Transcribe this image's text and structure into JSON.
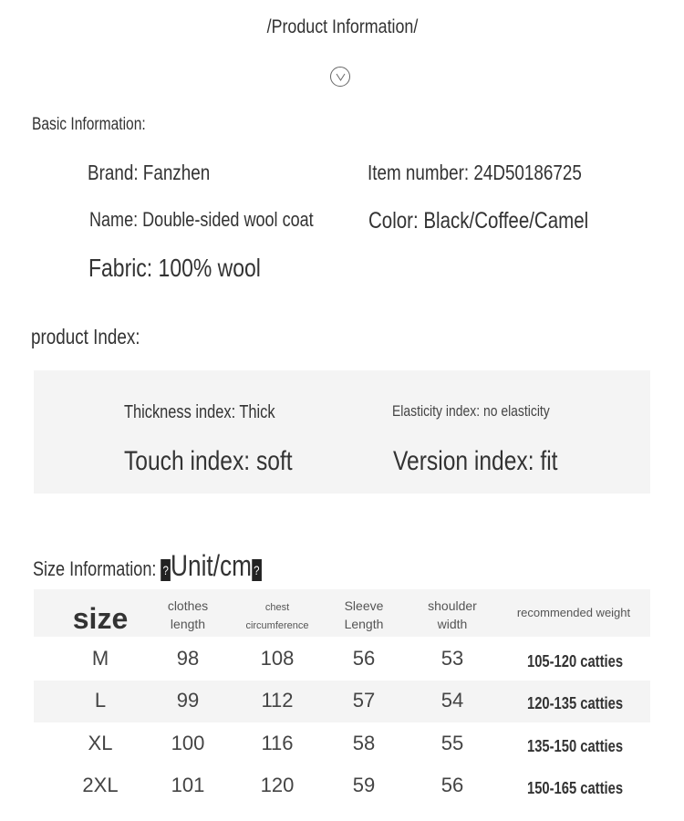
{
  "header": {
    "title": "/Product Information/",
    "icon": "chevron-down-circle-icon"
  },
  "basic": {
    "heading": "Basic Information:",
    "brand": "Brand: Fanzhen",
    "item_number": "Item number: 24D50186725",
    "name": "Name: Double-sided wool coat",
    "color": "Color: Black/Coffee/Camel",
    "fabric": "Fabric: 100% wool"
  },
  "index": {
    "heading": "product Index:",
    "thickness": "Thickness index: Thick",
    "elasticity": "Elasticity index: no elasticity",
    "touch": "Touch index: soft",
    "version": "Version index: fit"
  },
  "size": {
    "heading": "Size Information:",
    "unit": "Unit/cm",
    "unit_bracket": "?",
    "columns": [
      {
        "l1": "size",
        "l2": ""
      },
      {
        "l1": "clothes",
        "l2": "length"
      },
      {
        "l1": "chest",
        "l2": "circumference"
      },
      {
        "l1": "Sleeve",
        "l2": "Length"
      },
      {
        "l1": "shoulder",
        "l2": "width"
      },
      {
        "l1": "recommended weight",
        "l2": ""
      }
    ],
    "rows": [
      [
        "M",
        "98",
        "108",
        "56",
        "53",
        "105-120 catties"
      ],
      [
        "L",
        "99",
        "112",
        "57",
        "54",
        "120-135 catties"
      ],
      [
        "XL",
        "100",
        "116",
        "58",
        "55",
        "135-150 catties"
      ],
      [
        "2XL",
        "101",
        "120",
        "59",
        "56",
        "150-165 catties"
      ]
    ]
  }
}
